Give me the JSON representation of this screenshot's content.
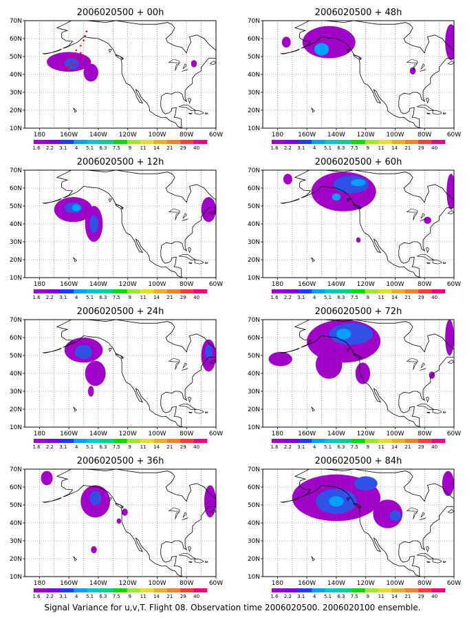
{
  "panels": [
    {
      "title": "2006020500 + 00h",
      "blobs": [
        {
          "lon": -160,
          "lat": 47,
          "level": 0,
          "rx": 15,
          "ry": 5.5
        },
        {
          "lon": -145,
          "lat": 41,
          "level": 0,
          "rx": 5,
          "ry": 5
        },
        {
          "lon": -158,
          "lat": 46,
          "level": 1,
          "rx": 5,
          "ry": 3
        },
        {
          "lon": -75,
          "lat": 46,
          "level": 0,
          "rx": 2,
          "ry": 2
        }
      ]
    },
    {
      "title": "2006020500 + 48h",
      "blobs": [
        {
          "lon": -145,
          "lat": 58,
          "level": 0,
          "rx": 18,
          "ry": 9
        },
        {
          "lon": -150,
          "lat": 54,
          "level": 2,
          "rx": 5,
          "ry": 3.5
        },
        {
          "lon": -62,
          "lat": 58,
          "level": 0,
          "rx": 4,
          "ry": 10
        },
        {
          "lon": -174,
          "lat": 58,
          "level": 0,
          "rx": 3,
          "ry": 3
        },
        {
          "lon": -88,
          "lat": 42,
          "level": 0,
          "rx": 2,
          "ry": 2
        }
      ]
    },
    {
      "title": "2006020500 + 12h",
      "blobs": [
        {
          "lon": -157,
          "lat": 48,
          "level": 0,
          "rx": 13,
          "ry": 7
        },
        {
          "lon": -143,
          "lat": 40,
          "level": 0,
          "rx": 6,
          "ry": 10
        },
        {
          "lon": -157,
          "lat": 49,
          "level": 1,
          "rx": 6,
          "ry": 3
        },
        {
          "lon": -143,
          "lat": 40,
          "level": 1,
          "rx": 3,
          "ry": 5
        },
        {
          "lon": -155,
          "lat": 49,
          "level": 2,
          "rx": 3,
          "ry": 2
        },
        {
          "lon": -65,
          "lat": 48,
          "level": 0,
          "rx": 5,
          "ry": 7
        }
      ]
    },
    {
      "title": "2006020500 + 60h",
      "blobs": [
        {
          "lon": -135,
          "lat": 58,
          "level": 0,
          "rx": 22,
          "ry": 11
        },
        {
          "lon": -130,
          "lat": 62,
          "level": 1,
          "rx": 12,
          "ry": 5
        },
        {
          "lon": -140,
          "lat": 55,
          "level": 2,
          "rx": 3,
          "ry": 2
        },
        {
          "lon": -125,
          "lat": 63,
          "level": 2,
          "rx": 5,
          "ry": 2
        },
        {
          "lon": -173,
          "lat": 65,
          "level": 0,
          "rx": 3,
          "ry": 3
        },
        {
          "lon": -78,
          "lat": 42,
          "level": 0,
          "rx": 2.5,
          "ry": 2
        },
        {
          "lon": -62,
          "lat": 58,
          "level": 0,
          "rx": 3,
          "ry": 10
        },
        {
          "lon": -125,
          "lat": 31,
          "level": 0,
          "rx": 1.5,
          "ry": 1.5
        }
      ]
    },
    {
      "title": "2006020500 + 24h",
      "blobs": [
        {
          "lon": -150,
          "lat": 53,
          "level": 0,
          "rx": 13,
          "ry": 7
        },
        {
          "lon": -142,
          "lat": 40,
          "level": 0,
          "rx": 7,
          "ry": 7
        },
        {
          "lon": -145,
          "lat": 30,
          "level": 0,
          "rx": 2,
          "ry": 3
        },
        {
          "lon": -150,
          "lat": 52,
          "level": 1,
          "rx": 6,
          "ry": 4
        },
        {
          "lon": -65,
          "lat": 50,
          "level": 0,
          "rx": 5,
          "ry": 9
        },
        {
          "lon": -65,
          "lat": 52,
          "level": 1,
          "rx": 2.5,
          "ry": 4
        }
      ]
    },
    {
      "title": "2006020500 + 72h",
      "blobs": [
        {
          "lon": -135,
          "lat": 58,
          "level": 0,
          "rx": 25,
          "ry": 12
        },
        {
          "lon": -145,
          "lat": 45,
          "level": 0,
          "rx": 9,
          "ry": 8
        },
        {
          "lon": -122,
          "lat": 40,
          "level": 0,
          "rx": 5,
          "ry": 6
        },
        {
          "lon": -178,
          "lat": 48,
          "level": 0,
          "rx": 8,
          "ry": 4
        },
        {
          "lon": -130,
          "lat": 62,
          "level": 1,
          "rx": 15,
          "ry": 6
        },
        {
          "lon": -135,
          "lat": 62,
          "level": 2,
          "rx": 5,
          "ry": 3
        },
        {
          "lon": -63,
          "lat": 60,
          "level": 0,
          "rx": 3,
          "ry": 10
        },
        {
          "lon": -75,
          "lat": 39,
          "level": 0,
          "rx": 2,
          "ry": 2
        }
      ]
    },
    {
      "title": "2006020500 + 36h",
      "blobs": [
        {
          "lon": -142,
          "lat": 52,
          "level": 0,
          "rx": 10,
          "ry": 9
        },
        {
          "lon": -142,
          "lat": 54,
          "level": 1,
          "rx": 4,
          "ry": 4
        },
        {
          "lon": -175,
          "lat": 65,
          "level": 0,
          "rx": 4,
          "ry": 4
        },
        {
          "lon": -122,
          "lat": 46,
          "level": 0,
          "rx": 2,
          "ry": 2
        },
        {
          "lon": -126,
          "lat": 41,
          "level": 0,
          "rx": 1.5,
          "ry": 1.5
        },
        {
          "lon": -143,
          "lat": 25,
          "level": 0,
          "rx": 2,
          "ry": 2
        },
        {
          "lon": -64,
          "lat": 52,
          "level": 0,
          "rx": 4,
          "ry": 9
        }
      ]
    },
    {
      "title": "2006020500 + 84h",
      "blobs": [
        {
          "lon": -140,
          "lat": 54,
          "level": 0,
          "rx": 30,
          "ry": 13
        },
        {
          "lon": -105,
          "lat": 45,
          "level": 0,
          "rx": 10,
          "ry": 8
        },
        {
          "lon": -140,
          "lat": 52,
          "level": 1,
          "rx": 14,
          "ry": 7
        },
        {
          "lon": -120,
          "lat": 62,
          "level": 1,
          "rx": 8,
          "ry": 4
        },
        {
          "lon": -140,
          "lat": 52,
          "level": 2,
          "rx": 5,
          "ry": 3
        },
        {
          "lon": -100,
          "lat": 44,
          "level": 1,
          "rx": 4,
          "ry": 3
        },
        {
          "lon": -64,
          "lat": 62,
          "level": 0,
          "rx": 4,
          "ry": 7
        }
      ]
    }
  ],
  "lon_ticks": [
    "180",
    "160W",
    "140W",
    "120W",
    "100W",
    "80W",
    "60W"
  ],
  "lat_ticks": [
    "10N",
    "20N",
    "30N",
    "40N",
    "50N",
    "60N",
    "70N"
  ],
  "colorbar": {
    "labels": [
      "1.6",
      "2.2",
      "3.1",
      "4",
      "5.1",
      "6.3",
      "7.5",
      "9",
      "11",
      "14",
      "21",
      "29",
      "40"
    ],
    "colors": [
      "#a000c8",
      "#8200dc",
      "#1e3cff",
      "#00a0ff",
      "#00c8c8",
      "#00d28c",
      "#00dc00",
      "#a0e632",
      "#e6dc32",
      "#e6af2d",
      "#f08228",
      "#fa3c3c",
      "#f00082"
    ]
  },
  "caption": "Signal Variance for u,v,T. Flight 08. Observation time 2006020500. 2006020100 ensemble.",
  "observation_marker_color": "#ff0000"
}
